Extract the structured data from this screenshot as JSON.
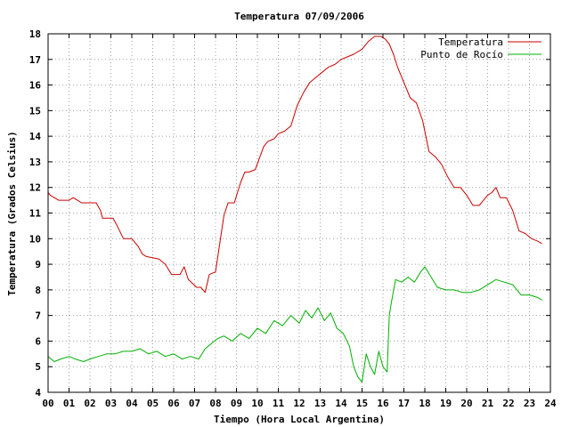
{
  "chart_data": {
    "type": "line",
    "title": "Temperatura 07/09/2006",
    "xlabel": "Tiempo (Hora Local Argentina)",
    "ylabel": "Temperatura (Grados Celsius)",
    "xlim": [
      0,
      24
    ],
    "ylim": [
      4,
      18
    ],
    "xticks": [
      "00",
      "01",
      "02",
      "03",
      "04",
      "05",
      "06",
      "07",
      "08",
      "09",
      "10",
      "11",
      "12",
      "13",
      "14",
      "15",
      "16",
      "17",
      "18",
      "19",
      "20",
      "21",
      "22",
      "23",
      "24"
    ],
    "yticks": [
      4,
      5,
      6,
      7,
      8,
      9,
      10,
      11,
      12,
      13,
      14,
      15,
      16,
      17,
      18
    ],
    "grid": true,
    "legend_position": "top-right",
    "colors": {
      "temperatura": "#cc0000",
      "rocio": "#00b000"
    },
    "series": [
      {
        "name": "Temperatura",
        "color": "#cc0000",
        "x": [
          0,
          0.1,
          0.3,
          0.5,
          1.0,
          1.2,
          1.4,
          1.6,
          2.3,
          2.5,
          2.6,
          3.1,
          3.3,
          3.6,
          4.0,
          4.3,
          4.5,
          4.7,
          5.3,
          5.6,
          5.9,
          6.3,
          6.5,
          6.7,
          7.1,
          7.3,
          7.5,
          7.7,
          8.0,
          8.2,
          8.4,
          8.6,
          8.9,
          9.2,
          9.4,
          9.6,
          9.9,
          10.3,
          10.5,
          10.8,
          11.0,
          11.3,
          11.6,
          11.9,
          12.2,
          12.5,
          12.8,
          13.1,
          13.4,
          13.7,
          14.0,
          14.3,
          14.6,
          15.0,
          15.3,
          15.6,
          15.9,
          16.1,
          16.3,
          16.5,
          16.7,
          17.0,
          17.3,
          17.6,
          17.9,
          18.2,
          18.5,
          18.8,
          19.1,
          19.4,
          19.7,
          20.0,
          20.3,
          20.6,
          21.0,
          21.2,
          21.4,
          21.6,
          21.9,
          22.2,
          22.5,
          22.8,
          23.1,
          23.4,
          23.6
        ],
        "values": [
          11.8,
          11.7,
          11.6,
          11.5,
          11.5,
          11.6,
          11.5,
          11.4,
          11.4,
          11.1,
          10.8,
          10.8,
          10.5,
          10.0,
          10.0,
          9.7,
          9.4,
          9.3,
          9.2,
          9.0,
          8.6,
          8.6,
          8.9,
          8.4,
          8.1,
          8.1,
          7.9,
          8.6,
          8.7,
          9.8,
          10.9,
          11.4,
          11.4,
          12.2,
          12.6,
          12.6,
          12.7,
          13.6,
          13.8,
          13.9,
          14.1,
          14.2,
          14.4,
          15.2,
          15.7,
          16.1,
          16.3,
          16.5,
          16.7,
          16.8,
          17.0,
          17.1,
          17.2,
          17.4,
          17.7,
          17.9,
          17.9,
          17.8,
          17.6,
          17.2,
          16.7,
          16.1,
          15.5,
          15.3,
          14.6,
          13.4,
          13.2,
          12.9,
          12.4,
          12.0,
          12.0,
          11.7,
          11.3,
          11.3,
          11.7,
          11.8,
          12.0,
          11.6,
          11.6,
          11.1,
          10.3,
          10.2,
          10.0,
          9.9,
          9.8
        ]
      },
      {
        "name": "Punto de Rocío",
        "color": "#00b000",
        "x": [
          0,
          0.3,
          0.6,
          1.0,
          1.3,
          1.7,
          2.0,
          2.4,
          2.8,
          3.2,
          3.6,
          4.0,
          4.4,
          4.8,
          5.2,
          5.6,
          6.0,
          6.4,
          6.8,
          7.2,
          7.5,
          7.8,
          8.1,
          8.4,
          8.8,
          9.2,
          9.6,
          10.0,
          10.4,
          10.8,
          11.2,
          11.6,
          12.0,
          12.3,
          12.6,
          12.9,
          13.2,
          13.5,
          13.8,
          14.1,
          14.4,
          14.6,
          14.8,
          15.0,
          15.2,
          15.4,
          15.6,
          15.8,
          16.0,
          16.2,
          16.3,
          16.4,
          16.6,
          16.9,
          17.2,
          17.5,
          17.8,
          18.0,
          18.3,
          18.6,
          19.0,
          19.4,
          19.8,
          20.2,
          20.6,
          21.0,
          21.4,
          21.8,
          22.2,
          22.6,
          23.0,
          23.4,
          23.6
        ],
        "values": [
          5.4,
          5.2,
          5.3,
          5.4,
          5.3,
          5.2,
          5.3,
          5.4,
          5.5,
          5.5,
          5.6,
          5.6,
          5.7,
          5.5,
          5.6,
          5.4,
          5.5,
          5.3,
          5.4,
          5.3,
          5.7,
          5.9,
          6.1,
          6.2,
          6.0,
          6.3,
          6.1,
          6.5,
          6.3,
          6.8,
          6.6,
          7.0,
          6.7,
          7.2,
          6.9,
          7.3,
          6.8,
          7.1,
          6.5,
          6.3,
          5.8,
          5.0,
          4.6,
          4.4,
          5.5,
          5.0,
          4.7,
          5.6,
          5.0,
          4.8,
          7.0,
          7.5,
          8.4,
          8.3,
          8.5,
          8.3,
          8.7,
          8.9,
          8.5,
          8.1,
          8.0,
          8.0,
          7.9,
          7.9,
          8.0,
          8.2,
          8.4,
          8.3,
          8.2,
          7.8,
          7.8,
          7.7,
          7.6
        ]
      }
    ]
  }
}
